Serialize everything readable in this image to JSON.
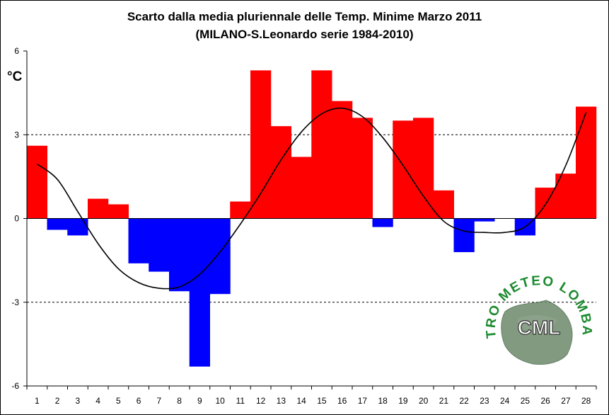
{
  "chart_data": {
    "type": "bar",
    "title": "Scarto dalla media pluriennale delle Temp. Minime Marzo 2011",
    "subtitle": "(MILANO-S.Leonardo serie 1984-2010)",
    "ylabel": "°C",
    "ylim": [
      -6,
      6
    ],
    "yticks": [
      6,
      3,
      0,
      -3,
      -6
    ],
    "grid": "dashed at 3 and -3",
    "categories": [
      "1",
      "2",
      "3",
      "4",
      "5",
      "6",
      "7",
      "8",
      "9",
      "10",
      "11",
      "12",
      "13",
      "14",
      "15",
      "16",
      "17",
      "18",
      "19",
      "20",
      "21",
      "22",
      "23",
      "24",
      "25",
      "26",
      "27",
      "28"
    ],
    "values": [
      2.6,
      -0.4,
      -0.6,
      0.7,
      0.5,
      -1.6,
      -1.9,
      -2.6,
      -5.3,
      -2.7,
      0.6,
      5.3,
      3.3,
      2.2,
      5.3,
      4.2,
      3.6,
      -0.3,
      3.5,
      3.6,
      1.0,
      -1.2,
      -0.1,
      0.0,
      -0.6,
      1.1,
      1.6,
      4.0
    ],
    "positive_color": "#ff0000",
    "negative_color": "#0000ff",
    "trend_line": {
      "type": "line",
      "color": "#000000",
      "x": [
        "1",
        "2",
        "3",
        "4",
        "5",
        "6",
        "7",
        "8",
        "9",
        "10",
        "11",
        "12",
        "13",
        "14",
        "15",
        "16",
        "17",
        "18",
        "19",
        "20",
        "21",
        "22",
        "23",
        "24",
        "25",
        "26",
        "27",
        "28"
      ],
      "values": [
        1.95,
        1.4,
        0.25,
        -0.9,
        -1.8,
        -2.3,
        -2.5,
        -2.45,
        -2.0,
        -1.2,
        -0.2,
        0.9,
        2.1,
        3.1,
        3.75,
        3.95,
        3.65,
        2.9,
        1.9,
        0.8,
        -0.1,
        -0.45,
        -0.5,
        -0.5,
        -0.3,
        0.5,
        1.9,
        3.8
      ]
    }
  },
  "logo": {
    "text_top": "CENTRO METEO LOMBARDO",
    "abbr": "CML"
  }
}
